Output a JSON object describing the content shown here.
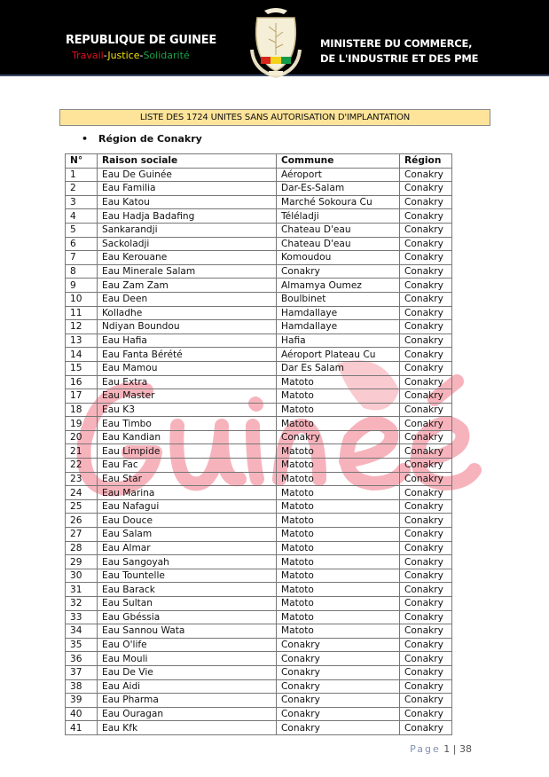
{
  "header": {
    "left_title": "REPUBLIQUE DE GUINEE",
    "motto": {
      "part1": "Travail",
      "sep1": "-",
      "part2": "Justice",
      "sep2": "-",
      "part3": "Solidarité"
    },
    "right_line1": "MINISTERE DU COMMERCE,",
    "right_line2": "DE L'INDUSTRIE ET DES PME",
    "emblem_text": "TRAVAIL JUSTICE SOLIDARITE"
  },
  "document": {
    "title": "LISTE DES 1724 UNITES SANS AUTORISATION D'IMPLANTATION",
    "section": "Région de Conakry",
    "watermark": "Guinée"
  },
  "table": {
    "headers": [
      "N°",
      "Raison sociale",
      "Commune",
      "Région"
    ],
    "rows": [
      [
        "1",
        "Eau De Guinée",
        "Aéroport",
        "Conakry"
      ],
      [
        "2",
        "Eau Familia",
        "Dar-Es-Salam",
        "Conakry"
      ],
      [
        "3",
        "Eau Katou",
        "Marché Sokoura Cu",
        "Conakry"
      ],
      [
        "4",
        "Eau Hadja Badafing",
        "Téléladji",
        "Conakry"
      ],
      [
        "5",
        "Sankarandji",
        "Chateau D'eau",
        "Conakry"
      ],
      [
        "6",
        "Sackoladji",
        "Chateau D'eau",
        "Conakry"
      ],
      [
        "7",
        "Eau Kerouane",
        "Komoudou",
        "Conakry"
      ],
      [
        "8",
        "Eau Minerale Salam",
        "Conakry",
        "Conakry"
      ],
      [
        "9",
        "Eau Zam Zam",
        "Almamya Oumez",
        "Conakry"
      ],
      [
        "10",
        "Eau Deen",
        "Boulbinet",
        "Conakry"
      ],
      [
        "11",
        "Kolladhe",
        "Hamdallaye",
        "Conakry"
      ],
      [
        "12",
        "Ndiyan Boundou",
        "Hamdallaye",
        "Conakry"
      ],
      [
        "13",
        "Eau Hafia",
        "Hafia",
        "Conakry"
      ],
      [
        "14",
        "Eau Fanta Bérété",
        "Aéroport Plateau Cu",
        "Conakry"
      ],
      [
        "15",
        "Eau Mamou",
        "Dar Es Salam",
        "Conakry"
      ],
      [
        "16",
        "Eau Extra",
        "Matoto",
        "Conakry"
      ],
      [
        "17",
        "Eau Master",
        "Matoto",
        "Conakry"
      ],
      [
        "18",
        "Eau K3",
        "Matoto",
        "Conakry"
      ],
      [
        "19",
        "Eau Timbo",
        "Matoto",
        "Conakry"
      ],
      [
        "20",
        "Eau Kandian",
        "Conakry",
        "Conakry"
      ],
      [
        "21",
        "Eau Limpide",
        "Matoto",
        "Conakry"
      ],
      [
        "22",
        "Eau Fac",
        "Matoto",
        "Conakry"
      ],
      [
        "23",
        "Eau Star",
        "Matoto",
        "Conakry"
      ],
      [
        "24",
        "Eau Marina",
        "Matoto",
        "Conakry"
      ],
      [
        "25",
        "Eau Nafagui",
        "Matoto",
        "Conakry"
      ],
      [
        "26",
        "Eau Douce",
        "Matoto",
        "Conakry"
      ],
      [
        "27",
        "Eau Salam",
        "Matoto",
        "Conakry"
      ],
      [
        "28",
        "Eau Almar",
        "Matoto",
        "Conakry"
      ],
      [
        "29",
        "Eau Sangoyah",
        "Matoto",
        "Conakry"
      ],
      [
        "30",
        "Eau Tountelle",
        "Matoto",
        "Conakry"
      ],
      [
        "31",
        "Eau Barack",
        "Matoto",
        "Conakry"
      ],
      [
        "32",
        "Eau Sultan",
        "Matoto",
        "Conakry"
      ],
      [
        "33",
        "Eau Gbéssia",
        "Matoto",
        "Conakry"
      ],
      [
        "34",
        "Eau Sannou Wata",
        "Matoto",
        "Conakry"
      ],
      [
        "35",
        "Eau O'life",
        "Conakry",
        "Conakry"
      ],
      [
        "36",
        "Eau Mouli",
        "Conakry",
        "Conakry"
      ],
      [
        "37",
        "Eau De Vie",
        "Conakry",
        "Conakry"
      ],
      [
        "38",
        "Eau Aidi",
        "Conakry",
        "Conakry"
      ],
      [
        "39",
        "Eau Pharma",
        "Conakry",
        "Conakry"
      ],
      [
        "40",
        "Eau Ouragan",
        "Conakry",
        "Conakry"
      ],
      [
        "41",
        "Eau Kfk",
        "Conakry",
        "Conakry"
      ]
    ]
  },
  "footer": {
    "page_label": "Page",
    "page_sep": "|",
    "page_number": "1",
    "page_total": "38"
  }
}
